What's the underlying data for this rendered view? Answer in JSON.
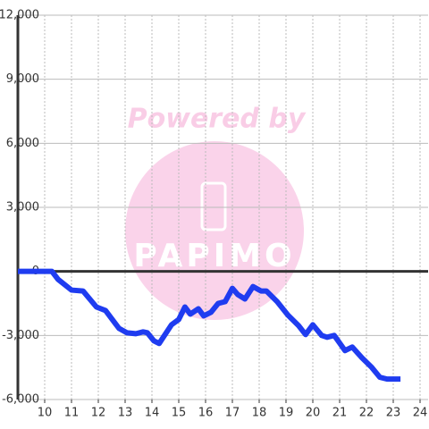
{
  "chart_data": {
    "type": "line",
    "watermark": "Powered by",
    "watermark_logo": "PAPIMO",
    "x": [
      9,
      10.27,
      10.5,
      11,
      11.43,
      11.93,
      12.27,
      12.77,
      13.07,
      13.4,
      13.67,
      13.83,
      14.07,
      14.27,
      14.73,
      15,
      15.23,
      15.43,
      15.73,
      15.93,
      16.2,
      16.47,
      16.73,
      17,
      17.2,
      17.47,
      17.77,
      18.07,
      18.27,
      18.67,
      19.07,
      19.47,
      19.73,
      20,
      20.33,
      20.53,
      20.8,
      21.2,
      21.47,
      21.83,
      22.2,
      22.5,
      22.77,
      23.27
    ],
    "series": [
      {
        "color": "#1f3cf0",
        "values": [
          0,
          0,
          -375,
          -875,
          -917,
          -1667,
          -1833,
          -2667,
          -2875,
          -2917,
          -2833,
          -2875,
          -3250,
          -3375,
          -2500,
          -2250,
          -1667,
          -2000,
          -1750,
          -2083,
          -1917,
          -1500,
          -1417,
          -792,
          -1083,
          -1292,
          -708,
          -917,
          -917,
          -1417,
          -2042,
          -2542,
          -2958,
          -2500,
          -3000,
          -3083,
          -3000,
          -3708,
          -3542,
          -4042,
          -4500,
          -4958,
          -5042,
          -5042
        ]
      }
    ],
    "xlim": [
      9,
      24.3
    ],
    "ylim": [
      -6000,
      12000
    ],
    "xticks": [
      10,
      11,
      12,
      13,
      14,
      15,
      16,
      17,
      18,
      19,
      20,
      21,
      22,
      23,
      24
    ],
    "yticks": [
      {
        "value": -6000,
        "label": "-6,000"
      },
      {
        "value": -3000,
        "label": "-3,000"
      },
      0,
      {
        "value": 3000,
        "label": "3,000"
      },
      {
        "value": 6000,
        "label": "6,000"
      },
      {
        "value": 9000,
        "label": "9,000"
      },
      {
        "value": 12000,
        "label": "12,000"
      }
    ],
    "grid": true
  }
}
